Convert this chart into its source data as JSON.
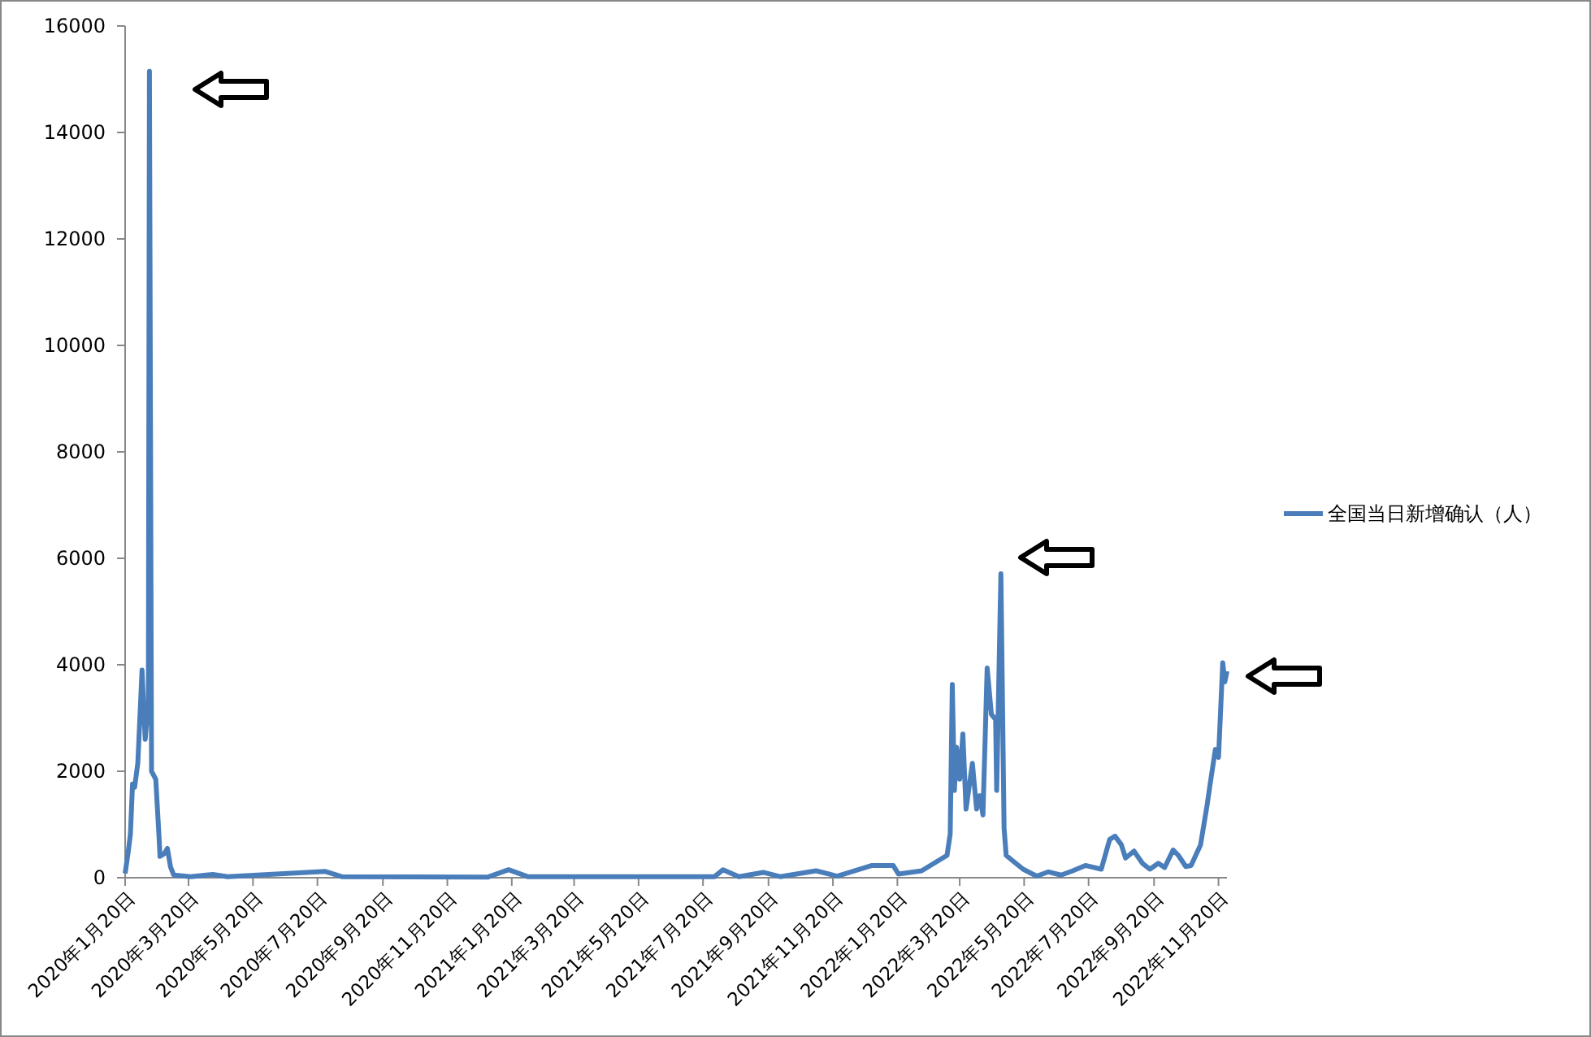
{
  "chart_data": {
    "type": "line",
    "x": [
      "2020-01-20",
      "2020-01-23",
      "2020-01-25",
      "2020-01-27",
      "2020-01-29",
      "2020-02-01",
      "2020-02-05",
      "2020-02-08",
      "2020-02-11",
      "2020-02-12",
      "2020-02-14",
      "2020-02-18",
      "2020-02-21",
      "2020-02-22",
      "2020-02-26",
      "2020-02-29",
      "2020-03-03",
      "2020-03-06",
      "2020-03-22",
      "2020-04-12",
      "2020-04-26",
      "2020-07-27",
      "2020-08-12",
      "2020-12-28",
      "2021-01-17",
      "2021-02-04",
      "2021-07-31",
      "2021-08-08",
      "2021-08-23",
      "2021-09-15",
      "2021-10-01",
      "2021-11-04",
      "2021-11-24",
      "2021-12-27",
      "2022-01-16",
      "2022-01-21",
      "2022-02-12",
      "2022-03-08",
      "2022-03-11",
      "2022-03-13",
      "2022-03-15",
      "2022-03-17",
      "2022-03-20",
      "2022-03-23",
      "2022-03-26",
      "2022-04-01",
      "2022-04-05",
      "2022-04-08",
      "2022-04-11",
      "2022-04-15",
      "2022-04-19",
      "2022-04-23",
      "2022-04-24",
      "2022-04-28",
      "2022-05-01",
      "2022-05-03",
      "2022-05-09",
      "2022-05-19",
      "2022-06-01",
      "2022-06-12",
      "2022-06-24",
      "2022-07-05",
      "2022-07-17",
      "2022-08-01",
      "2022-08-09",
      "2022-08-14",
      "2022-08-20",
      "2022-08-24",
      "2022-09-01",
      "2022-09-09",
      "2022-09-16",
      "2022-09-24",
      "2022-09-30",
      "2022-10-08",
      "2022-10-13",
      "2022-10-20",
      "2022-10-25",
      "2022-11-03",
      "2022-11-09",
      "2022-11-12",
      "2022-11-17",
      "2022-11-20",
      "2022-11-24",
      "2022-11-26",
      "2022-11-28"
    ],
    "series": [
      {
        "name": "全国当日新增确认（人）",
        "color": "#4a7ebb",
        "values": [
          80,
          500,
          820,
          1760,
          1700,
          2150,
          3900,
          2600,
          3300,
          15150,
          2000,
          1850,
          800,
          400,
          450,
          550,
          200,
          50,
          20,
          60,
          20,
          120,
          20,
          10,
          150,
          20,
          20,
          150,
          20,
          100,
          20,
          130,
          30,
          230,
          230,
          70,
          130,
          420,
          820,
          3630,
          1640,
          2450,
          1850,
          2700,
          1290,
          2150,
          1290,
          1540,
          1180,
          3940,
          3070,
          2970,
          1640,
          5710,
          930,
          420,
          320,
          160,
          30,
          110,
          50,
          130,
          230,
          160,
          720,
          780,
          620,
          370,
          500,
          270,
          160,
          270,
          190,
          520,
          420,
          210,
          230,
          620,
          1340,
          1750,
          2410,
          2260,
          4040,
          3680,
          3880
        ]
      }
    ],
    "xlim": [
      "2020-01-20",
      "2022-11-28"
    ],
    "xticks": [
      {
        "value": "2020-01-20",
        "label": "2020年1月20日"
      },
      {
        "value": "2020-03-20",
        "label": "2020年3月20日"
      },
      {
        "value": "2020-05-20",
        "label": "2020年5月20日"
      },
      {
        "value": "2020-07-20",
        "label": "2020年7月20日"
      },
      {
        "value": "2020-09-20",
        "label": "2020年9月20日"
      },
      {
        "value": "2020-11-20",
        "label": "2020年11月20日"
      },
      {
        "value": "2021-01-20",
        "label": "2021年1月20日"
      },
      {
        "value": "2021-03-20",
        "label": "2021年3月20日"
      },
      {
        "value": "2021-05-20",
        "label": "2021年5月20日"
      },
      {
        "value": "2021-07-20",
        "label": "2021年7月20日"
      },
      {
        "value": "2021-09-20",
        "label": "2021年9月20日"
      },
      {
        "value": "2021-11-20",
        "label": "2021年11月20日"
      },
      {
        "value": "2022-01-20",
        "label": "2022年1月20日"
      },
      {
        "value": "2022-03-20",
        "label": "2022年3月20日"
      },
      {
        "value": "2022-05-20",
        "label": "2022年5月20日"
      },
      {
        "value": "2022-07-20",
        "label": "2022年7月20日"
      },
      {
        "value": "2022-09-20",
        "label": "2022年9月20日"
      },
      {
        "value": "2022-11-20",
        "label": "2022年11月20日"
      }
    ],
    "ylim": [
      0,
      16000
    ],
    "yticks": [
      0,
      2000,
      4000,
      6000,
      8000,
      10000,
      12000,
      14000,
      16000
    ],
    "grid": false,
    "legend": "right",
    "marker": "none",
    "line_style": "solid"
  }
}
